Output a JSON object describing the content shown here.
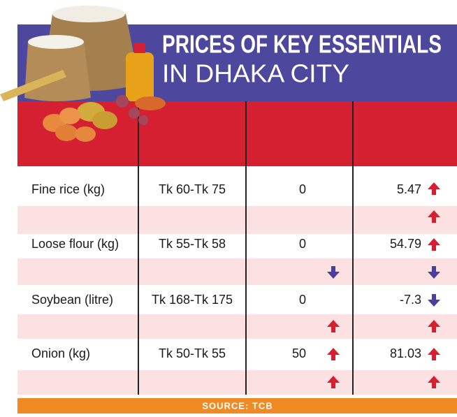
{
  "header": {
    "title_line1": "PRICES OF KEY ESSENTIALS",
    "title_line2": "IN DHAKA CITY"
  },
  "table": {
    "rows": [
      [
        "Fine rice (kg)",
        "Tk 60-Tk 75",
        0,
        5.47
      ],
      [
        "Loose flour (kg)",
        "Tk 55-Tk 58",
        0,
        54.79
      ],
      [
        "Soybean (litre)",
        "Tk 168-Tk 175",
        0,
        -7.3
      ],
      [
        "Onion (kg)",
        "Tk 50-Tk 55",
        50,
        81.03
      ]
    ]
  },
  "footer": {
    "source": "SOURCE: TCB"
  }
}
